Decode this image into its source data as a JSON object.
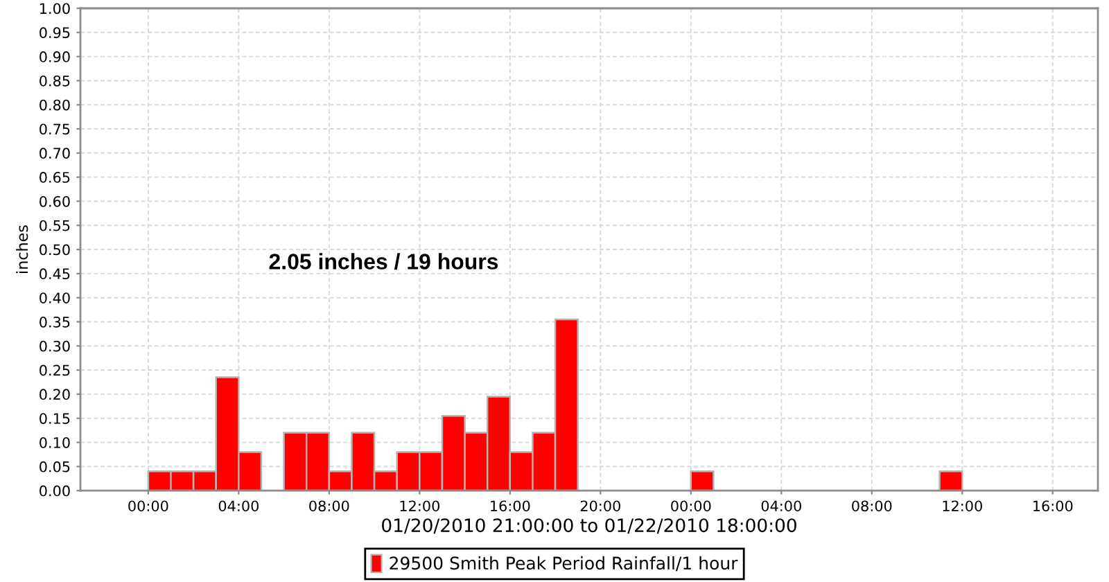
{
  "chart_data": {
    "type": "bar",
    "xlabel": "01/20/2010 21:00:00 to 01/22/2010 18:00:00",
    "ylabel": "inches",
    "annotations": [
      "2.05 inches / 19 hours"
    ],
    "x": [
      "2010-01-21T00:30",
      "2010-01-21T01:30",
      "2010-01-21T02:30",
      "2010-01-21T03:30",
      "2010-01-21T04:30",
      "2010-01-21T06:30",
      "2010-01-21T07:30",
      "2010-01-21T08:30",
      "2010-01-21T09:30",
      "2010-01-21T10:30",
      "2010-01-21T11:30",
      "2010-01-21T12:30",
      "2010-01-21T13:30",
      "2010-01-21T14:30",
      "2010-01-21T15:30",
      "2010-01-21T16:30",
      "2010-01-21T17:30",
      "2010-01-21T18:30",
      "2010-01-22T00:30",
      "2010-01-22T11:30"
    ],
    "series": [
      {
        "name": "29500 Smith Peak Period Rainfall/1 hour",
        "color": "#ff0000",
        "values": [
          0.04,
          0.04,
          0.04,
          0.235,
          0.08,
          0.12,
          0.12,
          0.04,
          0.12,
          0.04,
          0.08,
          0.08,
          0.155,
          0.12,
          0.195,
          0.08,
          0.12,
          0.355,
          0.04,
          0.04
        ]
      }
    ],
    "xlim": [
      "2010-01-20T21:00",
      "2010-01-22T18:00"
    ],
    "xticks": [
      {
        "value": "2010-01-21T00:00",
        "label": "00:00"
      },
      {
        "value": "2010-01-21T04:00",
        "label": "04:00"
      },
      {
        "value": "2010-01-21T08:00",
        "label": "08:00"
      },
      {
        "value": "2010-01-21T12:00",
        "label": "12:00"
      },
      {
        "value": "2010-01-21T16:00",
        "label": "16:00"
      },
      {
        "value": "2010-01-21T20:00",
        "label": "20:00"
      },
      {
        "value": "2010-01-22T00:00",
        "label": "00:00"
      },
      {
        "value": "2010-01-22T04:00",
        "label": "04:00"
      },
      {
        "value": "2010-01-22T08:00",
        "label": "08:00"
      },
      {
        "value": "2010-01-22T12:00",
        "label": "12:00"
      },
      {
        "value": "2010-01-22T16:00",
        "label": "16:00"
      }
    ],
    "ylim": [
      0,
      1
    ],
    "yticks": [
      {
        "value": 0,
        "label": "0.00"
      },
      {
        "value": 0.05,
        "label": "0.05"
      },
      {
        "value": 0.1,
        "label": "0.10"
      },
      {
        "value": 0.15,
        "label": "0.15"
      },
      {
        "value": 0.2,
        "label": "0.20"
      },
      {
        "value": 0.25,
        "label": "0.25"
      },
      {
        "value": 0.3,
        "label": "0.30"
      },
      {
        "value": 0.35,
        "label": "0.35"
      },
      {
        "value": 0.4,
        "label": "0.40"
      },
      {
        "value": 0.45,
        "label": "0.45"
      },
      {
        "value": 0.5,
        "label": "0.50"
      },
      {
        "value": 0.55,
        "label": "0.55"
      },
      {
        "value": 0.6,
        "label": "0.60"
      },
      {
        "value": 0.65,
        "label": "0.65"
      },
      {
        "value": 0.7,
        "label": "0.70"
      },
      {
        "value": 0.75,
        "label": "0.75"
      },
      {
        "value": 0.8,
        "label": "0.80"
      },
      {
        "value": 0.85,
        "label": "0.85"
      },
      {
        "value": 0.9,
        "label": "0.90"
      },
      {
        "value": 0.95,
        "label": "0.95"
      },
      {
        "value": 1,
        "label": "1.00"
      }
    ],
    "grid": true,
    "legend": "bottom"
  }
}
